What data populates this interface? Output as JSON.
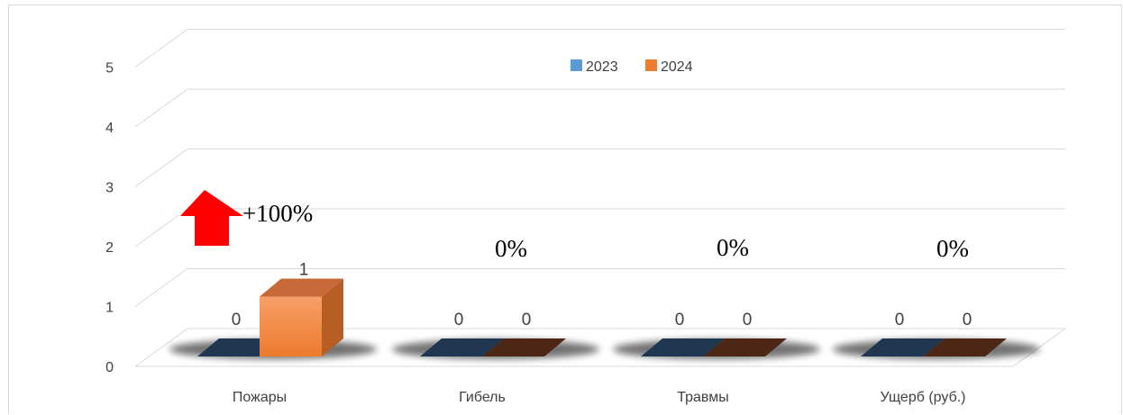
{
  "chart_data": {
    "type": "bar",
    "categories": [
      "Пожары",
      "Гибель",
      "Травмы",
      "Ущерб (руб.)"
    ],
    "series": [
      {
        "name": "2023",
        "values": [
          0,
          0,
          0,
          0
        ],
        "color": "#5b9bd5"
      },
      {
        "name": "2024",
        "values": [
          1,
          0,
          0,
          0
        ],
        "color": "#ed7d31"
      }
    ],
    "yticks": [
      "0",
      "1",
      "2",
      "3",
      "4",
      "5"
    ],
    "ylim": [
      0,
      5
    ],
    "grid": true,
    "legend_position": "top-center",
    "annotations": [
      "+100%",
      "0%",
      "0%",
      "0%"
    ],
    "colors": {
      "up_arrow": "#ff0000",
      "grid": "#d9d9d9"
    }
  }
}
